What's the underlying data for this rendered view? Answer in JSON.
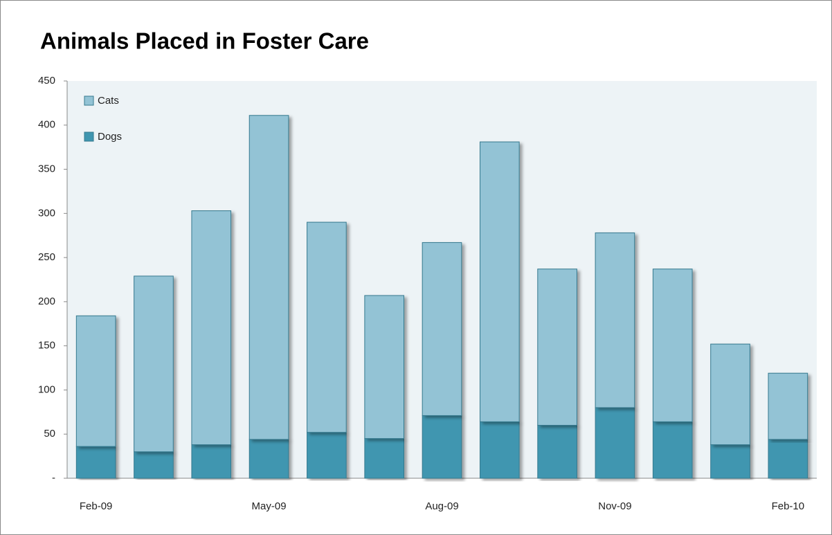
{
  "chart_data": {
    "type": "stacked_bar",
    "title": "Animals Placed in Foster Care",
    "categories": [
      "Feb-09",
      null,
      null,
      "May-09",
      null,
      null,
      "Aug-09",
      null,
      null,
      "Nov-09",
      null,
      null,
      "Feb-10"
    ],
    "series": [
      {
        "name": "Dogs",
        "color": "#4096b0",
        "values": [
          36,
          30,
          38,
          44,
          52,
          45,
          71,
          64,
          60,
          80,
          64,
          38,
          44
        ]
      },
      {
        "name": "Cats",
        "color": "#93c3d5",
        "values": [
          148,
          199,
          265,
          367,
          238,
          162,
          196,
          317,
          177,
          198,
          173,
          114,
          75
        ]
      }
    ],
    "ylim": [
      0,
      450
    ],
    "yticks": [
      {
        "value": 0,
        "label": "-"
      },
      50,
      100,
      150,
      200,
      250,
      300,
      350,
      400,
      450
    ],
    "legend": "upper left",
    "grid": false
  }
}
